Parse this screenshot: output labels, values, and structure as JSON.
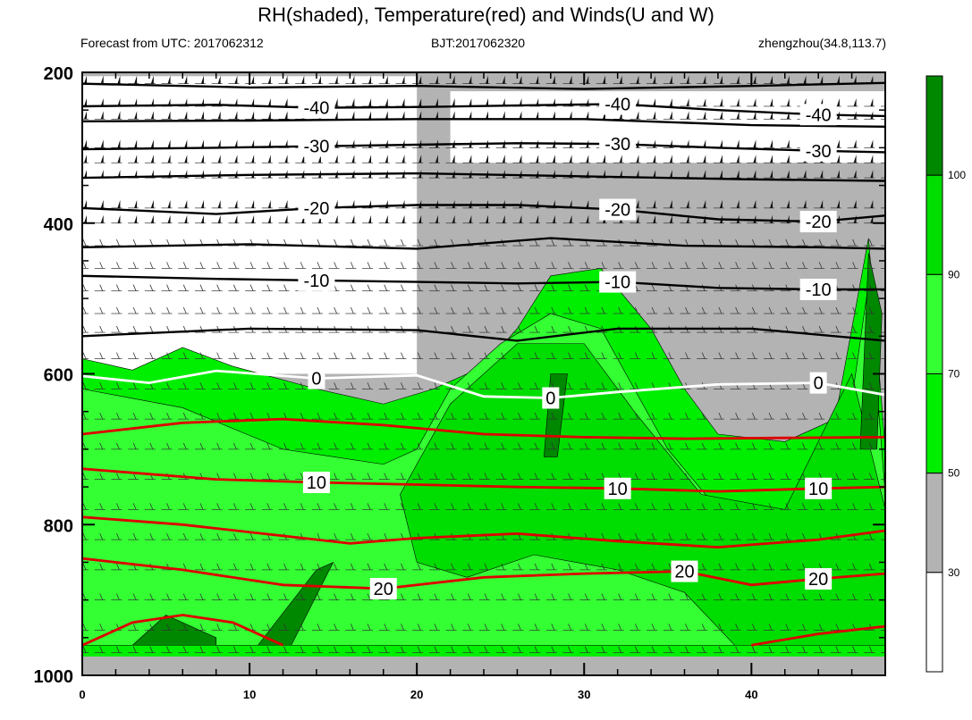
{
  "header": {
    "title": "RH(shaded), Temperature(red) and Winds(U and W)",
    "forecast_text": "Forecast from UTC: 2017062312",
    "bjt_text": "BJT:2017062320",
    "station_text": "zhengzhou(34.8,113.7)"
  },
  "chart_data": {
    "type": "heatmap",
    "title": "RH(shaded), Temperature(red) and Winds(U and W)",
    "x_ticks": [
      0,
      10,
      20,
      30,
      40
    ],
    "xlim": [
      0,
      48
    ],
    "y_ticks": [
      200,
      400,
      600,
      800,
      1000
    ],
    "ylim": [
      200,
      1000
    ],
    "y_inverted": true,
    "colorbar": {
      "levels": [
        30,
        50,
        70,
        90,
        100
      ],
      "colors": [
        "#ffffff",
        "#b3b3b3",
        "#00ee00",
        "#33ff33",
        "#00dd00",
        "#008800"
      ]
    },
    "rh_regions": [
      {
        "level": 50,
        "poly": [
          [
            0,
            580
          ],
          [
            3,
            595
          ],
          [
            6,
            565
          ],
          [
            9,
            590
          ],
          [
            14,
            620
          ],
          [
            18,
            640
          ],
          [
            21,
            620
          ],
          [
            24,
            590
          ],
          [
            26,
            540
          ],
          [
            28,
            470
          ],
          [
            31,
            460
          ],
          [
            34,
            540
          ],
          [
            36,
            620
          ],
          [
            38,
            680
          ],
          [
            42,
            690
          ],
          [
            45,
            660
          ],
          [
            47,
            420
          ],
          [
            48,
            700
          ],
          [
            48,
            980
          ],
          [
            0,
            980
          ]
        ]
      },
      {
        "level": 70,
        "poly": [
          [
            0,
            620
          ],
          [
            6,
            645
          ],
          [
            12,
            700
          ],
          [
            18,
            720
          ],
          [
            20,
            700
          ],
          [
            22,
            620
          ],
          [
            25,
            560
          ],
          [
            28,
            520
          ],
          [
            31,
            540
          ],
          [
            33,
            620
          ],
          [
            35,
            700
          ],
          [
            38,
            780
          ],
          [
            42,
            840
          ],
          [
            45,
            790
          ],
          [
            47,
            480
          ],
          [
            48,
            760
          ],
          [
            48,
            960
          ],
          [
            0,
            960
          ]
        ]
      },
      {
        "level": 90,
        "poly": [
          [
            19,
            760
          ],
          [
            22,
            640
          ],
          [
            26,
            560
          ],
          [
            30,
            560
          ],
          [
            33,
            650
          ],
          [
            37,
            760
          ],
          [
            42,
            780
          ],
          [
            46,
            600
          ],
          [
            48,
            780
          ],
          [
            48,
            960
          ],
          [
            39,
            960
          ],
          [
            36,
            890
          ],
          [
            32,
            860
          ],
          [
            27,
            840
          ],
          [
            23,
            870
          ],
          [
            20,
            850
          ]
        ]
      },
      {
        "level": 100,
        "poly": [
          [
            10.5,
            960
          ],
          [
            14,
            860
          ],
          [
            15,
            850
          ],
          [
            12.5,
            960
          ]
        ]
      },
      {
        "level": 100,
        "poly": [
          [
            3,
            960
          ],
          [
            5,
            920
          ],
          [
            8,
            950
          ],
          [
            8,
            960
          ]
        ]
      },
      {
        "level": 100,
        "poly": [
          [
            27.6,
            710
          ],
          [
            28,
            600
          ],
          [
            29,
            600
          ],
          [
            28.4,
            710
          ]
        ]
      },
      {
        "level": 100,
        "poly": [
          [
            46.5,
            700
          ],
          [
            47,
            440
          ],
          [
            47.8,
            520
          ],
          [
            47.5,
            700
          ]
        ]
      }
    ],
    "white_areas": [
      {
        "poly": [
          [
            0,
            205
          ],
          [
            20,
            205
          ],
          [
            20,
            600
          ],
          [
            0,
            600
          ]
        ]
      },
      {
        "poly": [
          [
            22,
            225
          ],
          [
            48,
            225
          ],
          [
            48,
            320
          ],
          [
            22,
            320
          ]
        ]
      }
    ],
    "temperature_contours": [
      {
        "value": -40,
        "label": "-40",
        "color": "#000000",
        "points": [
          [
            0,
            245
          ],
          [
            8,
            243
          ],
          [
            14,
            247
          ],
          [
            20,
            246
          ],
          [
            26,
            244
          ],
          [
            32,
            242
          ],
          [
            38,
            250
          ],
          [
            44,
            256
          ],
          [
            48,
            258
          ]
        ]
      },
      {
        "value": -30,
        "label": "-30",
        "color": "#000000",
        "points": [
          [
            0,
            302
          ],
          [
            8,
            300
          ],
          [
            14,
            298
          ],
          [
            20,
            296
          ],
          [
            26,
            294
          ],
          [
            32,
            295
          ],
          [
            38,
            300
          ],
          [
            44,
            304
          ],
          [
            48,
            306
          ]
        ]
      },
      {
        "value": -20,
        "label": "-20",
        "color": "#000000",
        "points": [
          [
            0,
            380
          ],
          [
            8,
            388
          ],
          [
            14,
            380
          ],
          [
            20,
            376
          ],
          [
            26,
            376
          ],
          [
            32,
            382
          ],
          [
            38,
            395
          ],
          [
            44,
            398
          ],
          [
            48,
            390
          ]
        ]
      },
      {
        "value": -10,
        "label": "-10",
        "color": "#000000",
        "points": [
          [
            0,
            470
          ],
          [
            8,
            474
          ],
          [
            14,
            476
          ],
          [
            20,
            478
          ],
          [
            26,
            480
          ],
          [
            32,
            478
          ],
          [
            38,
            486
          ],
          [
            44,
            488
          ],
          [
            48,
            488
          ]
        ]
      },
      {
        "value": 0,
        "label": "0",
        "color": "#ffffff",
        "points": [
          [
            0,
            603
          ],
          [
            4,
            612
          ],
          [
            8,
            596
          ],
          [
            14,
            606
          ],
          [
            20,
            602
          ],
          [
            24,
            630
          ],
          [
            28,
            632
          ],
          [
            32,
            624
          ],
          [
            38,
            614
          ],
          [
            44,
            612
          ],
          [
            48,
            628
          ]
        ]
      },
      {
        "value": 10,
        "label": "10",
        "color": "#dd0000",
        "points": [
          [
            0,
            726
          ],
          [
            8,
            740
          ],
          [
            14,
            744
          ],
          [
            20,
            747
          ],
          [
            26,
            750
          ],
          [
            32,
            752
          ],
          [
            38,
            756
          ],
          [
            44,
            752
          ],
          [
            48,
            750
          ]
        ]
      },
      {
        "value": 20,
        "label": "20",
        "color": "#dd0000",
        "points": [
          [
            0,
            845
          ],
          [
            6,
            860
          ],
          [
            12,
            880
          ],
          [
            18,
            885
          ],
          [
            24,
            870
          ],
          [
            30,
            865
          ],
          [
            36,
            862
          ],
          [
            40,
            880
          ],
          [
            44,
            872
          ],
          [
            48,
            865
          ]
        ]
      }
    ],
    "extra_contours": [
      {
        "color": "#dd0000",
        "points": [
          [
            0,
            680
          ],
          [
            6,
            665
          ],
          [
            12,
            660
          ],
          [
            18,
            668
          ],
          [
            24,
            680
          ],
          [
            30,
            684
          ],
          [
            36,
            686
          ],
          [
            42,
            685
          ],
          [
            48,
            684
          ]
        ]
      },
      {
        "color": "#dd0000",
        "points": [
          [
            0,
            790
          ],
          [
            6,
            800
          ],
          [
            12,
            815
          ],
          [
            16,
            825
          ],
          [
            20,
            818
          ],
          [
            26,
            812
          ],
          [
            32,
            822
          ],
          [
            38,
            830
          ],
          [
            44,
            820
          ],
          [
            48,
            808
          ]
        ]
      },
      {
        "color": "#dd0000",
        "points": [
          [
            0,
            960
          ],
          [
            3,
            930
          ],
          [
            6,
            920
          ],
          [
            9,
            930
          ],
          [
            12,
            960
          ]
        ]
      },
      {
        "color": "#dd0000",
        "points": [
          [
            40,
            960
          ],
          [
            44,
            945
          ],
          [
            48,
            935
          ]
        ]
      },
      {
        "color": "#000000",
        "points": [
          [
            0,
            215
          ],
          [
            10,
            220
          ],
          [
            20,
            218
          ],
          [
            30,
            222
          ],
          [
            40,
            218
          ],
          [
            48,
            214
          ]
        ]
      },
      {
        "color": "#000000",
        "points": [
          [
            0,
            265
          ],
          [
            10,
            264
          ],
          [
            20,
            262
          ],
          [
            30,
            262
          ],
          [
            40,
            270
          ],
          [
            48,
            272
          ]
        ]
      },
      {
        "color": "#000000",
        "points": [
          [
            0,
            340
          ],
          [
            10,
            336
          ],
          [
            20,
            334
          ],
          [
            30,
            338
          ],
          [
            40,
            342
          ],
          [
            48,
            344
          ]
        ]
      },
      {
        "color": "#000000",
        "points": [
          [
            0,
            432
          ],
          [
            10,
            428
          ],
          [
            20,
            434
          ],
          [
            28,
            420
          ],
          [
            36,
            430
          ],
          [
            44,
            432
          ],
          [
            48,
            434
          ]
        ]
      },
      {
        "color": "#000000",
        "points": [
          [
            0,
            550
          ],
          [
            10,
            540
          ],
          [
            20,
            542
          ],
          [
            26,
            556
          ],
          [
            32,
            540
          ],
          [
            40,
            540
          ],
          [
            48,
            556
          ]
        ]
      }
    ]
  }
}
